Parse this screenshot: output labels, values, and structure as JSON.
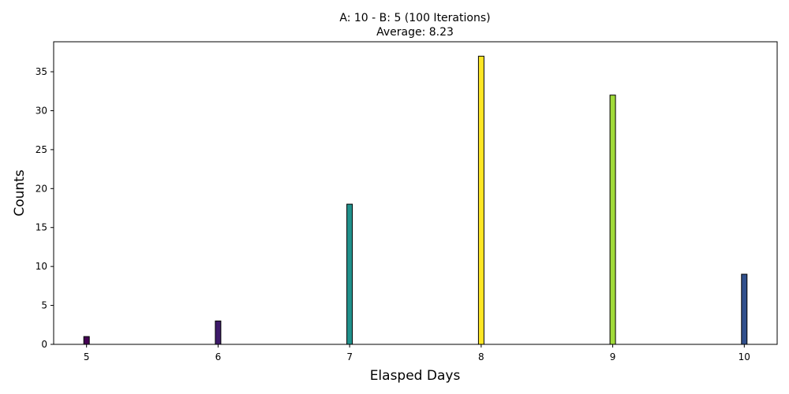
{
  "chart_data": {
    "type": "bar",
    "title": "A: 10 - B: 5 (100 Iterations)",
    "subtitle": "Average: 8.23",
    "xlabel": "Elasped Days",
    "ylabel": "Counts",
    "x": [
      5,
      6,
      7,
      8,
      9,
      10
    ],
    "values": [
      1,
      3,
      18,
      37,
      32,
      9
    ],
    "bar_colors": [
      "#440154",
      "#3e1a6a",
      "#21918c",
      "#fde725",
      "#a0da39",
      "#31508c"
    ],
    "edge_color": "#000000",
    "xlim": [
      4.75,
      10.25
    ],
    "ylim": [
      0,
      38.85
    ],
    "xticks": [
      5,
      6,
      7,
      8,
      9,
      10
    ],
    "yticks": [
      0,
      5,
      10,
      15,
      20,
      25,
      30,
      35
    ],
    "grid": false,
    "legend": "none"
  }
}
